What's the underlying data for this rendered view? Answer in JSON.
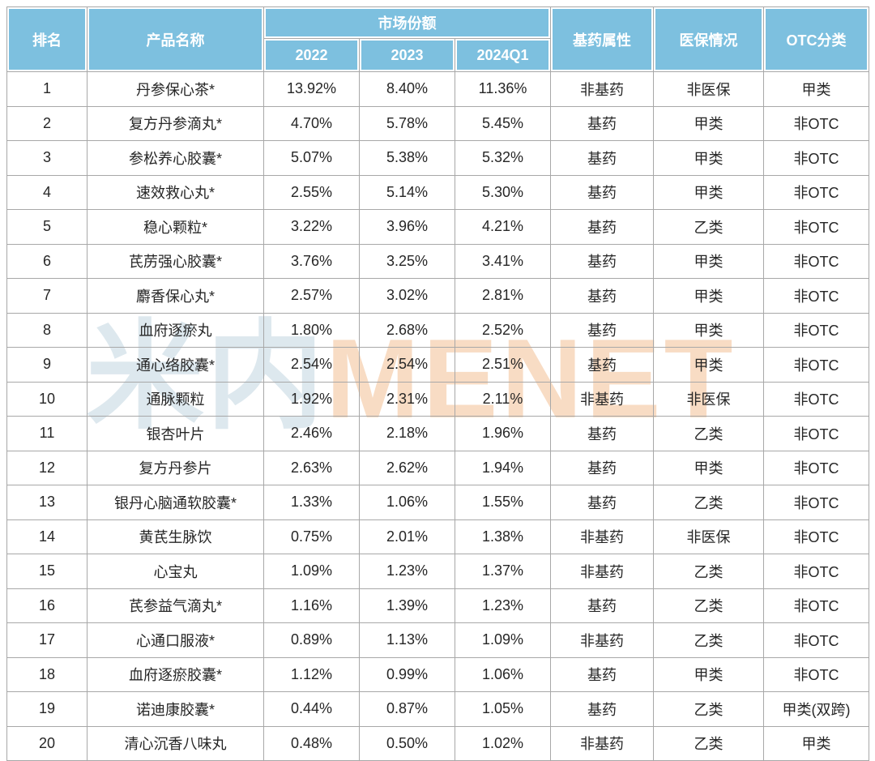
{
  "chart_data": {
    "type": "table",
    "column_group": {
      "label": "市场份额",
      "span_columns": [
        "2022",
        "2023",
        "2024Q1"
      ]
    },
    "columns": [
      "排名",
      "产品名称",
      "2022",
      "2023",
      "2024Q1",
      "基药属性",
      "医保情况",
      "OTC分类"
    ],
    "rows": [
      [
        "1",
        "丹参保心茶*",
        "13.92%",
        "8.40%",
        "11.36%",
        "非基药",
        "非医保",
        "甲类"
      ],
      [
        "2",
        "复方丹参滴丸*",
        "4.70%",
        "5.78%",
        "5.45%",
        "基药",
        "甲类",
        "非OTC"
      ],
      [
        "3",
        "参松养心胶囊*",
        "5.07%",
        "5.38%",
        "5.32%",
        "基药",
        "甲类",
        "非OTC"
      ],
      [
        "4",
        "速效救心丸*",
        "2.55%",
        "5.14%",
        "5.30%",
        "基药",
        "甲类",
        "非OTC"
      ],
      [
        "5",
        "稳心颗粒*",
        "3.22%",
        "3.96%",
        "4.21%",
        "基药",
        "乙类",
        "非OTC"
      ],
      [
        "6",
        "芪苈强心胶囊*",
        "3.76%",
        "3.25%",
        "3.41%",
        "基药",
        "甲类",
        "非OTC"
      ],
      [
        "7",
        "麝香保心丸*",
        "2.57%",
        "3.02%",
        "2.81%",
        "基药",
        "甲类",
        "非OTC"
      ],
      [
        "8",
        "血府逐瘀丸",
        "1.80%",
        "2.68%",
        "2.52%",
        "基药",
        "甲类",
        "非OTC"
      ],
      [
        "9",
        "通心络胶囊*",
        "2.54%",
        "2.54%",
        "2.51%",
        "基药",
        "甲类",
        "非OTC"
      ],
      [
        "10",
        "通脉颗粒",
        "1.92%",
        "2.31%",
        "2.11%",
        "非基药",
        "非医保",
        "非OTC"
      ],
      [
        "11",
        "银杏叶片",
        "2.46%",
        "2.18%",
        "1.96%",
        "基药",
        "乙类",
        "非OTC"
      ],
      [
        "12",
        "复方丹参片",
        "2.63%",
        "2.62%",
        "1.94%",
        "基药",
        "甲类",
        "非OTC"
      ],
      [
        "13",
        "银丹心脑通软胶囊*",
        "1.33%",
        "1.06%",
        "1.55%",
        "基药",
        "乙类",
        "非OTC"
      ],
      [
        "14",
        "黄芪生脉饮",
        "0.75%",
        "2.01%",
        "1.38%",
        "非基药",
        "非医保",
        "非OTC"
      ],
      [
        "15",
        "心宝丸",
        "1.09%",
        "1.23%",
        "1.37%",
        "非基药",
        "乙类",
        "非OTC"
      ],
      [
        "16",
        "芪参益气滴丸*",
        "1.16%",
        "1.39%",
        "1.23%",
        "基药",
        "乙类",
        "非OTC"
      ],
      [
        "17",
        "心通口服液*",
        "0.89%",
        "1.13%",
        "1.09%",
        "非基药",
        "乙类",
        "非OTC"
      ],
      [
        "18",
        "血府逐瘀胶囊*",
        "1.12%",
        "0.99%",
        "1.06%",
        "基药",
        "甲类",
        "非OTC"
      ],
      [
        "19",
        "诺迪康胶囊*",
        "0.44%",
        "0.87%",
        "1.05%",
        "基药",
        "乙类",
        "甲类(双跨)"
      ],
      [
        "20",
        "清心沉香八味丸",
        "0.48%",
        "0.50%",
        "1.02%",
        "非基药",
        "乙类",
        "甲类"
      ]
    ]
  },
  "watermark": {
    "cn": "米内",
    "en": "MENET"
  },
  "colors": {
    "header_bg": "#7dc0df",
    "header_text": "#ffffff",
    "grid": "#a8a8a8",
    "body_text": "#262626",
    "watermark_cn": "#dde8ee",
    "watermark_en": "#f8dcc4"
  }
}
